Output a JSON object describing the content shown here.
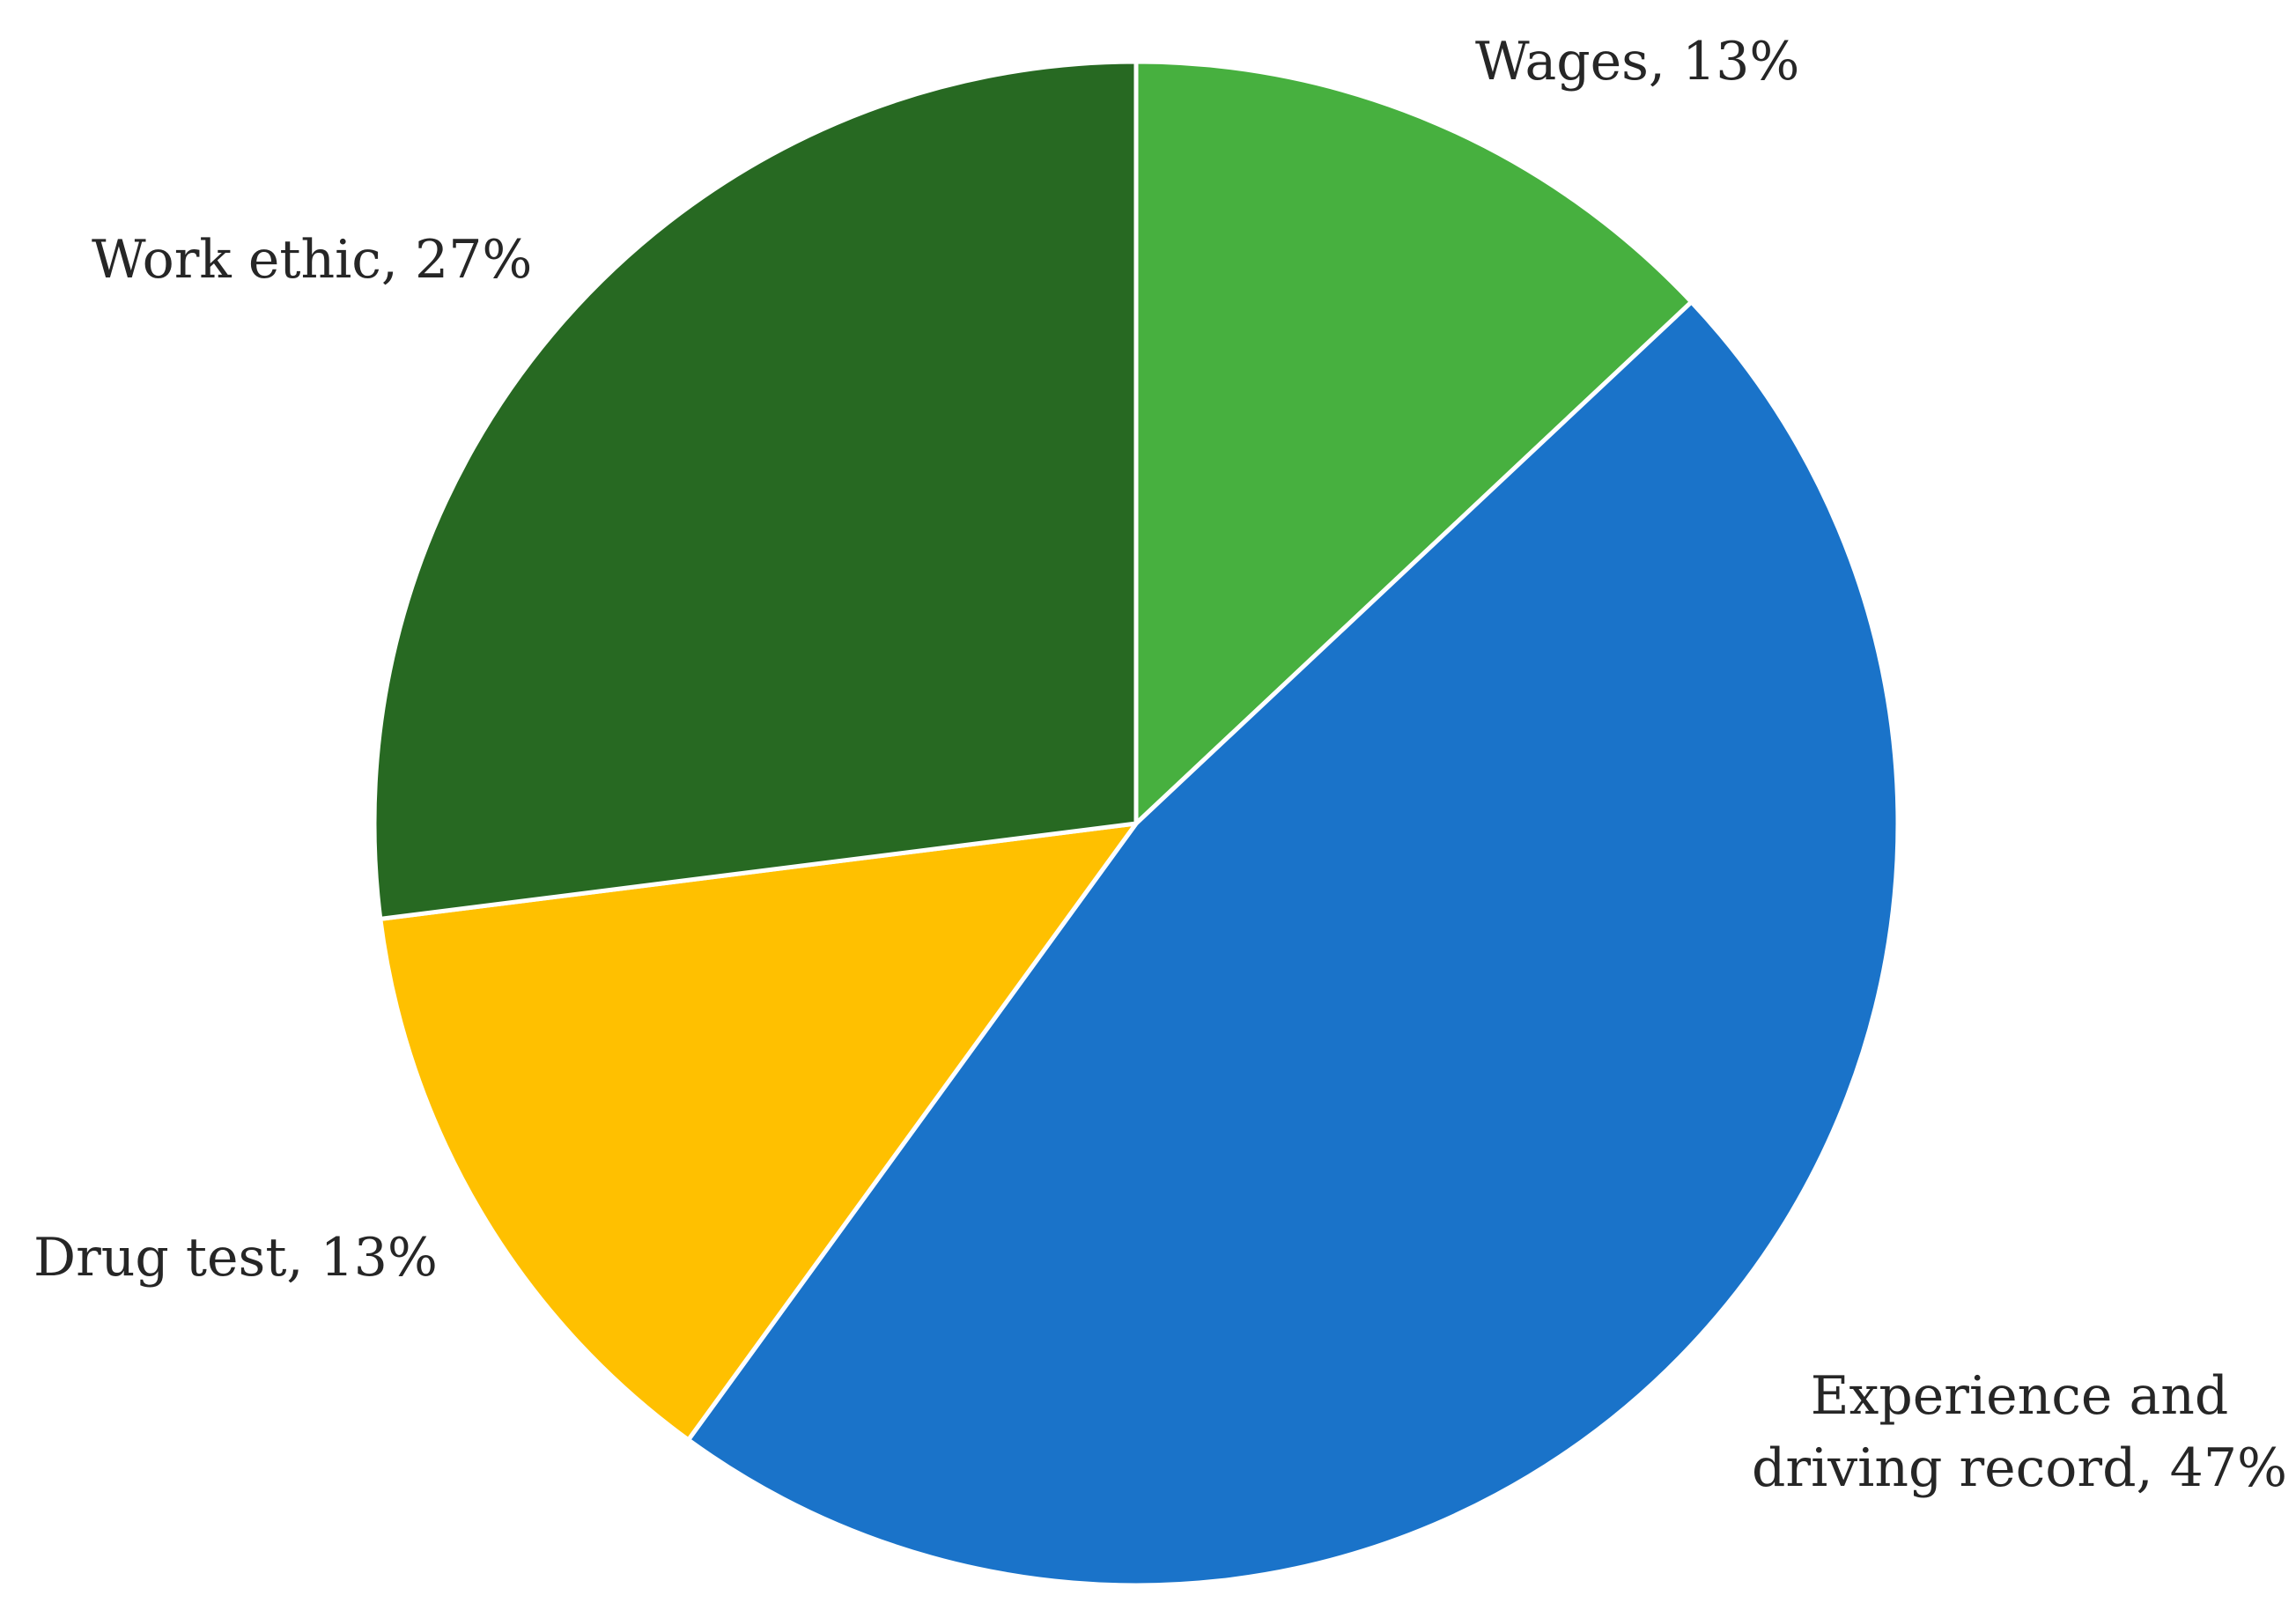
{
  "chart_data": {
    "type": "pie",
    "start_angle_deg": 0,
    "direction": "clockwise",
    "slices": [
      {
        "label": "Wages",
        "value": 13,
        "color": "#47b03f",
        "label_lines": [
          "Wages, 13%"
        ],
        "label_anchor": "start"
      },
      {
        "label": "Experience and driving record",
        "value": 47,
        "color": "#1a73c9",
        "label_lines": [
          "Experience and",
          "driving record, 47%"
        ],
        "label_anchor": "middle"
      },
      {
        "label": "Drug test",
        "value": 13,
        "color": "#ffc000",
        "label_lines": [
          "Drug test, 13%"
        ],
        "label_anchor": "start"
      },
      {
        "label": "Work ethic",
        "value": 27,
        "color": "#276922",
        "label_lines": [
          "Work ethic, 27%"
        ],
        "label_anchor": "start"
      }
    ],
    "legend": "none"
  }
}
